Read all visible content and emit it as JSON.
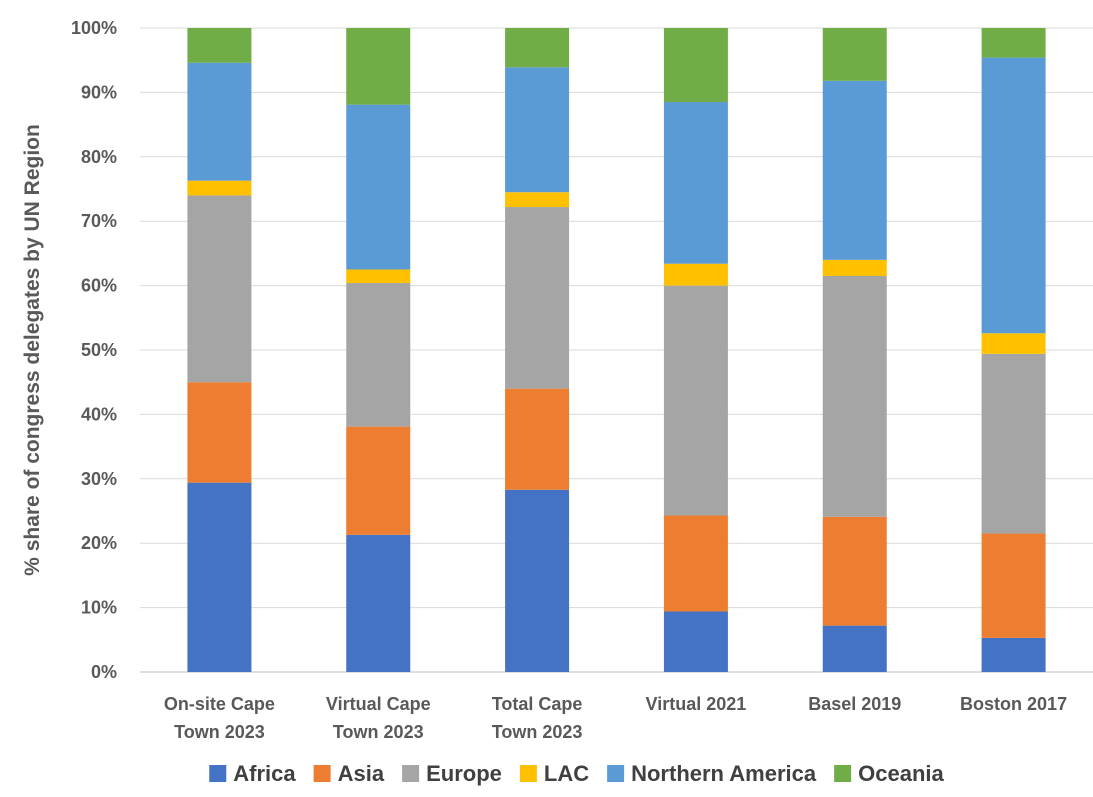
{
  "chart_data": {
    "type": "bar",
    "stacked": true,
    "percent": true,
    "title": "",
    "xlabel": "",
    "ylabel": "% share of congress delegates by UN Region",
    "ylim": [
      0,
      100
    ],
    "y_ticks": [
      "0%",
      "10%",
      "20%",
      "30%",
      "40%",
      "50%",
      "60%",
      "70%",
      "80%",
      "90%",
      "100%"
    ],
    "grid": "horizontal",
    "legend": "bottom",
    "categories": [
      [
        "On-site Cape",
        "Town 2023"
      ],
      [
        "Virtual Cape",
        "Town 2023"
      ],
      [
        "Total Cape",
        "Town 2023"
      ],
      [
        "Virtual 2021"
      ],
      [
        "Basel 2019"
      ],
      [
        "Boston 2017"
      ]
    ],
    "series": [
      {
        "name": "Africa",
        "color": "#4472C4",
        "values": [
          29.4,
          21.3,
          28.3,
          9.4,
          7.2,
          5.3
        ]
      },
      {
        "name": "Asia",
        "color": "#ED7D31",
        "values": [
          15.6,
          16.8,
          15.7,
          14.9,
          16.9,
          16.2
        ]
      },
      {
        "name": "Europe",
        "color": "#A5A5A5",
        "values": [
          29.0,
          22.3,
          28.2,
          35.7,
          37.4,
          27.9
        ]
      },
      {
        "name": "LAC",
        "color": "#FFC000",
        "values": [
          2.3,
          2.1,
          2.3,
          3.4,
          2.5,
          3.2
        ]
      },
      {
        "name": "Northern America",
        "color": "#5B9BD5",
        "values": [
          18.3,
          25.6,
          19.4,
          25.1,
          27.8,
          42.8
        ]
      },
      {
        "name": "Oceania",
        "color": "#70AD47",
        "values": [
          5.4,
          11.9,
          6.1,
          11.5,
          8.2,
          4.6
        ]
      }
    ]
  }
}
